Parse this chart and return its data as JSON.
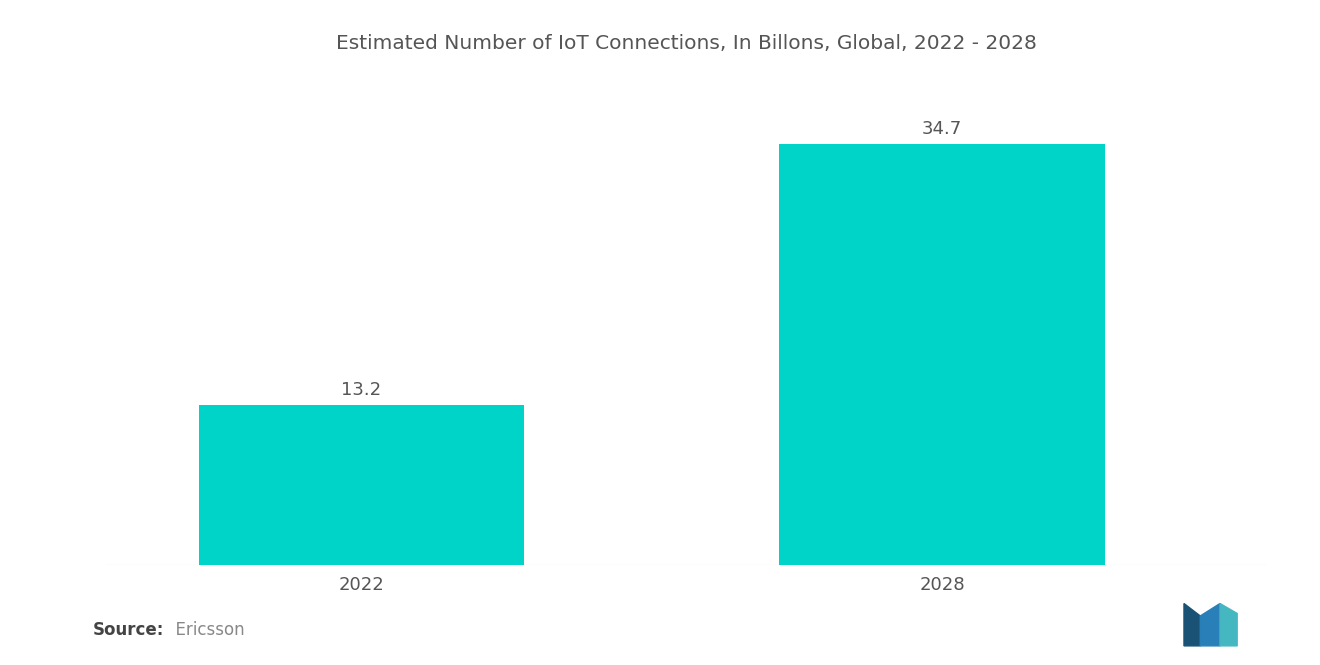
{
  "title": "Estimated Number of IoT Connections, In Billons, Global, 2022 - 2028",
  "categories": [
    "2022",
    "2028"
  ],
  "values": [
    13.2,
    34.7
  ],
  "bar_color": "#00D4C8",
  "background_color": "#ffffff",
  "source_bold": "Source:",
  "source_normal": "  Ericsson",
  "title_fontsize": 14.5,
  "tick_fontsize": 13,
  "value_fontsize": 13,
  "source_fontsize": 12,
  "ylim": [
    0,
    40
  ],
  "bar_width": 0.28,
  "x_positions": [
    0.22,
    0.72
  ],
  "xlim": [
    0.0,
    1.0
  ]
}
